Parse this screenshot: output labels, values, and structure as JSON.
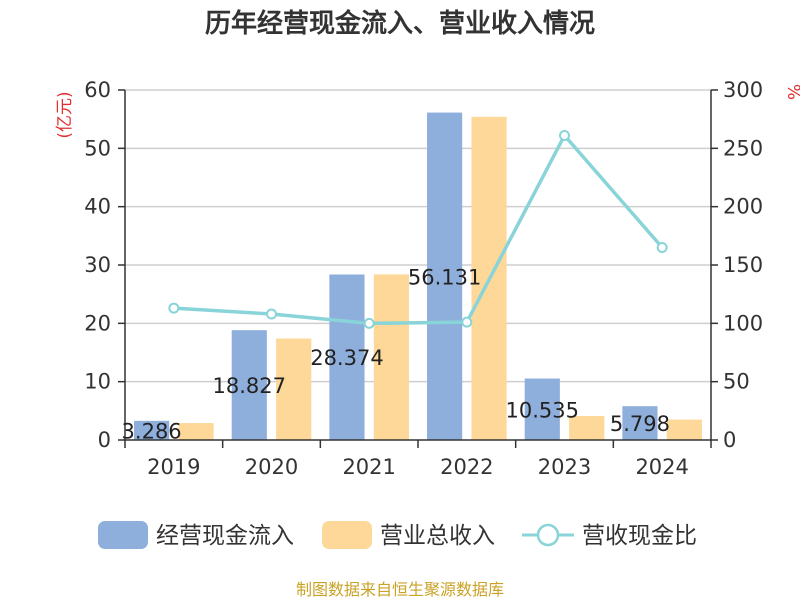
{
  "chart_data": {
    "type": "bar",
    "title": "历年经营现金流入、营业收入情况",
    "categories": [
      "2019",
      "2020",
      "2021",
      "2022",
      "2023",
      "2024"
    ],
    "series": [
      {
        "name": "经营现金流入",
        "kind": "bar",
        "axis": "left",
        "color": "#8eaedc",
        "values": [
          3.286,
          18.827,
          28.374,
          56.131,
          10.535,
          5.798
        ],
        "labels": [
          "3.286",
          "18.827",
          "28.374",
          "56.131",
          "10.535",
          "5.798"
        ]
      },
      {
        "name": "营业总收入",
        "kind": "bar",
        "axis": "left",
        "color": "#fdd898",
        "values": [
          2.9,
          17.4,
          28.4,
          55.4,
          4.1,
          3.5
        ]
      },
      {
        "name": "营收现金比",
        "kind": "line",
        "axis": "right",
        "color": "#89d4d8",
        "values": [
          113,
          108,
          100,
          101,
          261,
          165
        ]
      }
    ],
    "left_axis": {
      "unit": "(亿元)",
      "ylim": [
        0,
        60
      ],
      "ticks": [
        0,
        10,
        20,
        30,
        40,
        50,
        60
      ]
    },
    "right_axis": {
      "unit": "%",
      "ylim": [
        0,
        300
      ],
      "ticks": [
        0,
        50,
        100,
        150,
        200,
        250,
        300
      ]
    },
    "grid": true,
    "legend_position": "bottom"
  },
  "source_text": "制图数据来自恒生聚源数据库"
}
